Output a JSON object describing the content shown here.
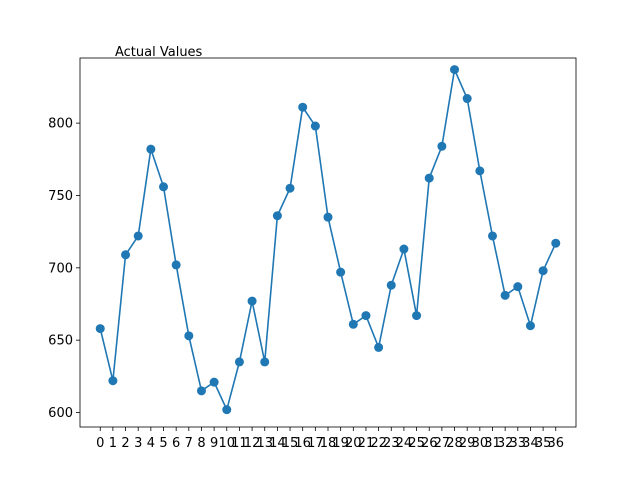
{
  "chart_data": {
    "type": "line",
    "title": "Actual Values",
    "xlabel": "",
    "ylabel": "",
    "x": [
      0,
      1,
      2,
      3,
      4,
      5,
      6,
      7,
      8,
      9,
      10,
      11,
      12,
      13,
      14,
      15,
      16,
      17,
      18,
      19,
      20,
      21,
      22,
      23,
      24,
      25,
      26,
      27,
      28,
      29,
      30,
      31,
      32,
      33,
      34,
      35,
      36
    ],
    "x_tick_labels": [
      "0",
      "1",
      "2",
      "3",
      "4",
      "5",
      "6",
      "7",
      "8",
      "9",
      "10",
      "11",
      "12",
      "13",
      "14",
      "15",
      "16",
      "17",
      "18",
      "19",
      "20",
      "21",
      "22",
      "23",
      "24",
      "25",
      "26",
      "27",
      "28",
      "29",
      "30",
      "31",
      "32",
      "33",
      "34",
      "35",
      "36"
    ],
    "series": [
      {
        "values": [
          658,
          622,
          709,
          722,
          782,
          756,
          702,
          653,
          615,
          621,
          602,
          635,
          677,
          635,
          736,
          755,
          811,
          798,
          735,
          697,
          661,
          667,
          645,
          688,
          713,
          667,
          762,
          784,
          837,
          817,
          767,
          722,
          681,
          687,
          660,
          698,
          717
        ],
        "color": "#1f77b4"
      }
    ],
    "y_ticks": [
      600,
      650,
      700,
      750,
      800
    ],
    "ylim": [
      590,
      845
    ],
    "xlim": [
      -1.6,
      37.6
    ],
    "grid": false,
    "legend": "none"
  }
}
